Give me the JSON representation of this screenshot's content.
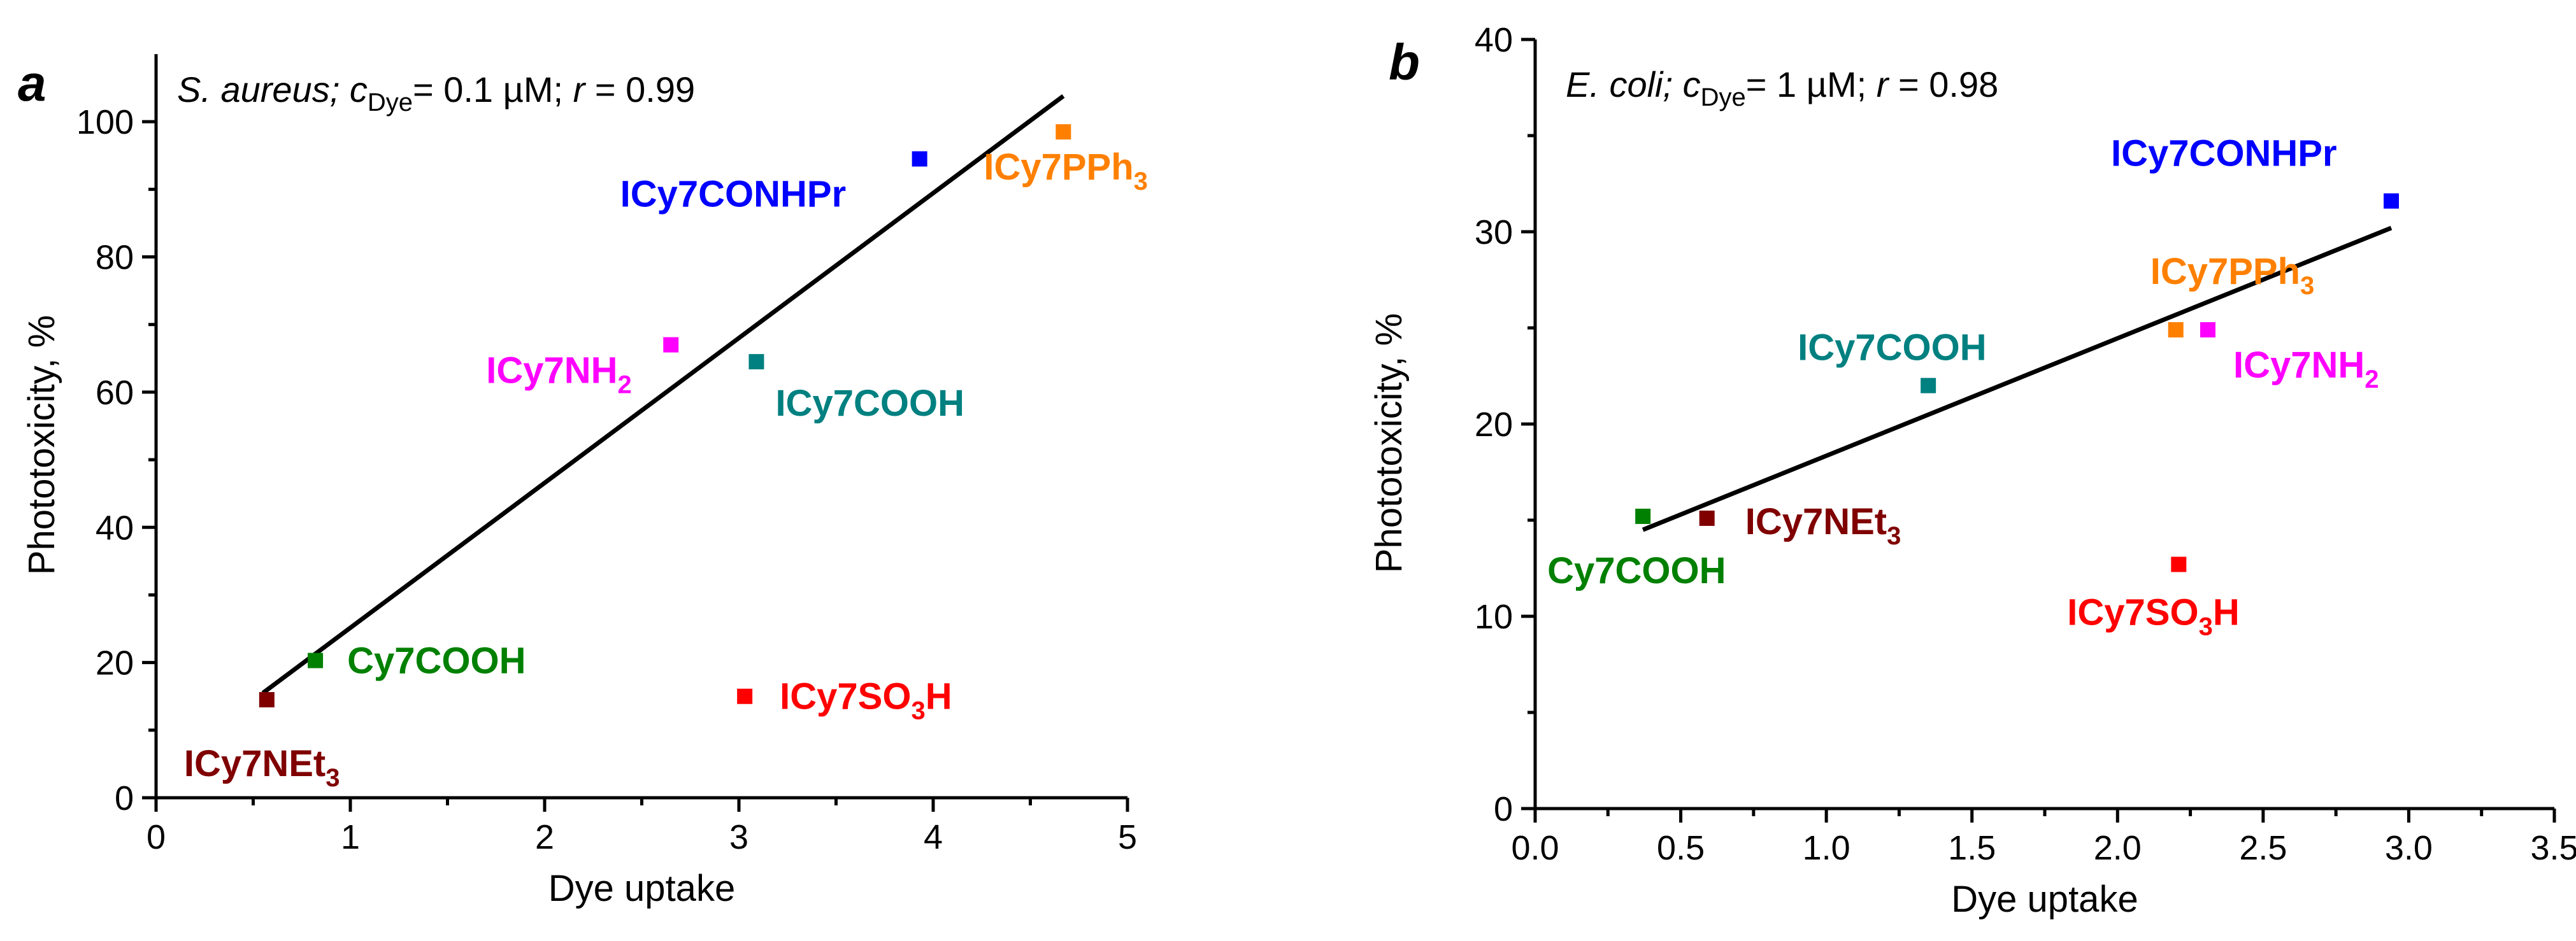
{
  "chart_data": [
    {
      "type": "scatter",
      "panel": "a",
      "title": {
        "organism": "S. aureus;",
        "c": "c",
        "c_sub": "Dye",
        "conc": "= 0.1 µM;",
        "r": "r",
        "r_val": "= 0.99"
      },
      "xlabel": "Dye uptake",
      "ylabel": "Phototoxicity, %",
      "xlim": [
        0,
        5
      ],
      "ylim": [
        0,
        110
      ],
      "xticks": [
        0,
        1,
        2,
        3,
        4,
        5
      ],
      "xtick_labels": [
        "0",
        "1",
        "2",
        "3",
        "4",
        "5"
      ],
      "yticks": [
        0,
        20,
        40,
        60,
        80,
        100
      ],
      "ytick_labels": [
        "0",
        "20",
        "40",
        "60",
        "80",
        "100"
      ],
      "points": [
        {
          "name": "ICy7NEt",
          "sub": "3",
          "after": "",
          "x": 0.57,
          "y": 14.5,
          "color": "#800000",
          "label_anchor": "below-left"
        },
        {
          "name": "Cy7COOH",
          "sub": "",
          "after": "",
          "x": 0.82,
          "y": 20.3,
          "color": "#008000",
          "label_anchor": "right"
        },
        {
          "name": "ICy7NH",
          "sub": "2",
          "after": "",
          "x": 2.65,
          "y": 67,
          "color": "#ff00ff",
          "label_anchor": "left"
        },
        {
          "name": "ICy7COOH",
          "sub": "",
          "after": "",
          "x": 3.09,
          "y": 64.5,
          "color": "#008080",
          "label_anchor": "below-right"
        },
        {
          "name": "ICy7SO",
          "sub": "3",
          "after": "H",
          "x": 3.03,
          "y": 15,
          "color": "#ff0000",
          "label_anchor": "right"
        },
        {
          "name": "ICy7CONHPr",
          "sub": "",
          "after": "",
          "x": 3.93,
          "y": 94.5,
          "color": "#0000ff",
          "label_anchor": "below-left"
        },
        {
          "name": "ICy7PPh",
          "sub": "3",
          "after": "",
          "x": 4.67,
          "y": 98.5,
          "color": "#ff8000",
          "label_anchor": "below-left"
        }
      ],
      "fit": {
        "x": [
          0.55,
          4.67
        ],
        "y": [
          15.5,
          103.8
        ]
      }
    },
    {
      "type": "scatter",
      "panel": "b",
      "title": {
        "organism": "E. coli;",
        "c": "c",
        "c_sub": "Dye",
        "conc": "= 1 µM;",
        "r": "r",
        "r_val": "= 0.98"
      },
      "xlabel": "Dye uptake",
      "ylabel": "Phototoxicity, %",
      "xlim": [
        0,
        3.5
      ],
      "ylim": [
        0,
        40
      ],
      "xticks": [
        0,
        0.5,
        1,
        1.5,
        2,
        2.5,
        3,
        3.5
      ],
      "xtick_labels": [
        "0.0",
        "0.5",
        "1.0",
        "1.5",
        "2.0",
        "2.5",
        "3.0",
        "3.5"
      ],
      "yticks": [
        0,
        10,
        20,
        30,
        40
      ],
      "ytick_labels": [
        "0",
        "10",
        "20",
        "30",
        "40"
      ],
      "points": [
        {
          "name": "Cy7COOH",
          "sub": "",
          "after": "",
          "x": 0.37,
          "y": 15.2,
          "color": "#008000",
          "label_anchor": "below"
        },
        {
          "name": "ICy7NEt",
          "sub": "3",
          "after": "",
          "x": 0.59,
          "y": 15.1,
          "color": "#800000",
          "label_anchor": "right"
        },
        {
          "name": "ICy7COOH",
          "sub": "",
          "after": "",
          "x": 1.35,
          "y": 22,
          "color": "#008080",
          "label_anchor": "above"
        },
        {
          "name": "ICy7PPh",
          "sub": "3",
          "after": "",
          "x": 2.2,
          "y": 24.9,
          "color": "#ff8000",
          "label_anchor": "above"
        },
        {
          "name": "ICy7NH",
          "sub": "2",
          "after": "",
          "x": 2.31,
          "y": 24.9,
          "color": "#ff00ff",
          "label_anchor": "below-right"
        },
        {
          "name": "ICy7SO",
          "sub": "3",
          "after": "H",
          "x": 2.21,
          "y": 12.7,
          "color": "#ff0000",
          "label_anchor": "below"
        },
        {
          "name": "ICy7CONHPr",
          "sub": "",
          "after": "",
          "x": 2.94,
          "y": 31.6,
          "color": "#0000ff",
          "label_anchor": "above-left"
        }
      ],
      "fit": {
        "x": [
          0.37,
          2.94
        ],
        "y": [
          14.5,
          30.2
        ]
      }
    }
  ]
}
